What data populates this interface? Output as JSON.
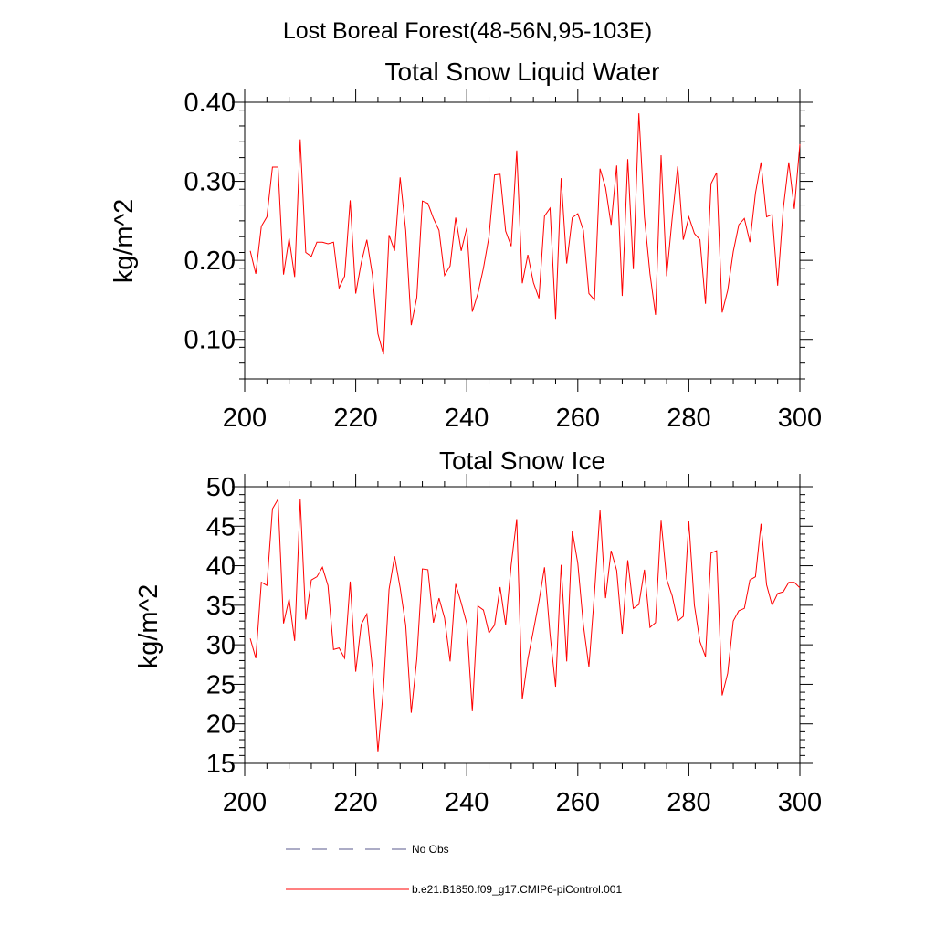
{
  "page_title": "Lost Boreal Forest(48-56N,95-103E)",
  "colors": {
    "series": "#ff0000",
    "obs": "#5a5a8c",
    "axis": "#000000"
  },
  "chart_data": [
    {
      "type": "line",
      "title": "Total Snow Liquid Water",
      "xlabel": "",
      "ylabel": "kg/m^2",
      "xlim": [
        200,
        300
      ],
      "ylim": [
        0.05,
        0.4
      ],
      "xticks": [
        200,
        220,
        240,
        260,
        280,
        300
      ],
      "xtick_labels": [
        "200",
        "220",
        "240",
        "260",
        "280",
        "300"
      ],
      "yticks": [
        0.1,
        0.2,
        0.3,
        0.4
      ],
      "ytick_labels": [
        "0.10",
        "0.20",
        "0.30",
        "0.40"
      ],
      "series": [
        {
          "name": "b.e21.B1850.f09_g17.CMIP6-piControl.001",
          "x_start": 201,
          "values": [
            0.212,
            0.183,
            0.243,
            0.255,
            0.318,
            0.318,
            0.182,
            0.228,
            0.179,
            0.353,
            0.21,
            0.205,
            0.223,
            0.223,
            0.221,
            0.223,
            0.165,
            0.18,
            0.276,
            0.158,
            0.197,
            0.226,
            0.182,
            0.107,
            0.081,
            0.232,
            0.212,
            0.305,
            0.238,
            0.118,
            0.153,
            0.275,
            0.272,
            0.253,
            0.238,
            0.181,
            0.193,
            0.254,
            0.212,
            0.241,
            0.135,
            0.158,
            0.19,
            0.23,
            0.308,
            0.309,
            0.237,
            0.218,
            0.339,
            0.171,
            0.207,
            0.172,
            0.152,
            0.256,
            0.266,
            0.126,
            0.304,
            0.196,
            0.254,
            0.259,
            0.238,
            0.158,
            0.15,
            0.316,
            0.292,
            0.245,
            0.32,
            0.155,
            0.328,
            0.189,
            0.386,
            0.255,
            0.183,
            0.131,
            0.333,
            0.18,
            0.253,
            0.319,
            0.226,
            0.255,
            0.234,
            0.226,
            0.145,
            0.297,
            0.311,
            0.134,
            0.162,
            0.211,
            0.245,
            0.253,
            0.223,
            0.285,
            0.324,
            0.255,
            0.258,
            0.168,
            0.265,
            0.324,
            0.265,
            0.347
          ]
        }
      ]
    },
    {
      "type": "line",
      "title": "Total Snow Ice",
      "xlabel": "",
      "ylabel": "kg/m^2",
      "xlim": [
        200,
        300
      ],
      "ylim": [
        15,
        50
      ],
      "xticks": [
        200,
        220,
        240,
        260,
        280,
        300
      ],
      "xtick_labels": [
        "200",
        "220",
        "240",
        "260",
        "280",
        "300"
      ],
      "yticks": [
        15,
        20,
        25,
        30,
        35,
        40,
        45,
        50
      ],
      "ytick_labels": [
        "15",
        "20",
        "25",
        "30",
        "35",
        "40",
        "45",
        "50"
      ],
      "series": [
        {
          "name": "b.e21.B1850.f09_g17.CMIP6-piControl.001",
          "x_start": 201,
          "values": [
            30.8,
            28.3,
            37.9,
            37.5,
            47.2,
            48.4,
            32.7,
            35.8,
            30.5,
            48.4,
            33.2,
            38.2,
            38.6,
            39.8,
            37.5,
            29.4,
            29.6,
            28.3,
            38.0,
            26.6,
            32.6,
            33.9,
            27.1,
            16.4,
            24.5,
            37.0,
            41.2,
            37.2,
            32.5,
            21.4,
            28.2,
            39.6,
            39.5,
            32.8,
            35.9,
            33.4,
            27.9,
            37.7,
            35.3,
            32.7,
            21.6,
            34.9,
            34.4,
            31.5,
            32.5,
            37.3,
            32.5,
            40.1,
            45.9,
            23.1,
            28.2,
            31.8,
            35.5,
            39.8,
            31.3,
            24.7,
            40.1,
            27.9,
            44.4,
            40.3,
            32.5,
            27.2,
            36.5,
            47.0,
            35.9,
            41.9,
            39.4,
            31.4,
            40.7,
            34.6,
            35.1,
            39.5,
            32.2,
            32.8,
            45.7,
            38.3,
            36.2,
            33.0,
            33.6,
            45.6,
            35.0,
            30.4,
            28.5,
            41.6,
            41.9,
            23.6,
            26.4,
            33.0,
            34.3,
            34.6,
            38.2,
            38.6,
            45.3,
            37.6,
            35.0,
            36.5,
            36.7,
            37.9,
            37.9,
            37.2
          ]
        }
      ]
    }
  ],
  "legend": {
    "placement": "bottom",
    "entries": [
      {
        "label": "No Obs",
        "style": "dashed"
      },
      {
        "label": "b.e21.B1850.f09_g17.CMIP6-piControl.001",
        "style": "solid"
      }
    ]
  }
}
